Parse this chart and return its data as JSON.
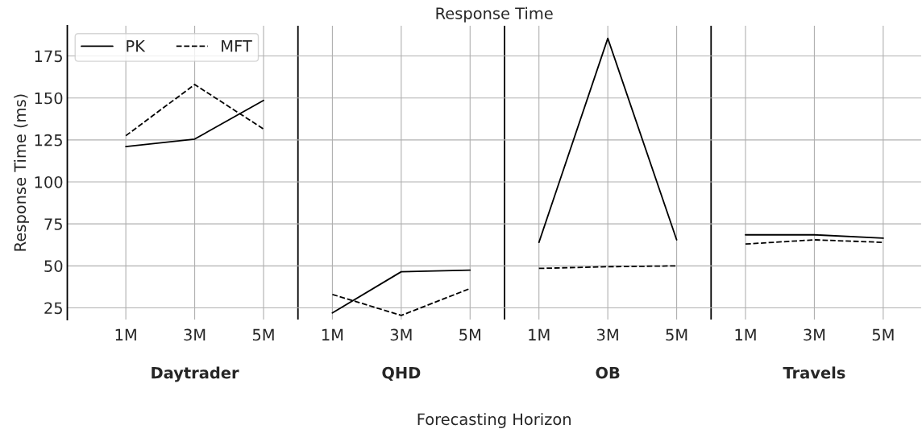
{
  "chart_data": {
    "type": "line",
    "title": "Response Time",
    "xlabel": "Forecasting Horizon",
    "ylabel": "Response Time (ms)",
    "annotations": [
      "Daytrader",
      "QHD",
      "OB",
      "Travels"
    ],
    "categories": [
      "1M",
      "3M",
      "5M",
      "1M",
      "3M",
      "5M",
      "1M",
      "3M",
      "5M",
      "1M",
      "3M",
      "5M"
    ],
    "series": [
      {
        "name": "PK",
        "color": "#000000",
        "line_style": "solid",
        "values": [
          121,
          125.5,
          148.5,
          null,
          null,
          null,
          null,
          null,
          null,
          null,
          null,
          null
        ]
      },
      {
        "name": "MFT",
        "color": "#000000",
        "line_style": "dashed",
        "values": [
          127.5,
          158,
          131.5,
          null,
          null,
          null,
          null,
          null,
          null,
          null,
          null,
          null
        ]
      },
      {
        "color": "#000000",
        "line_style": "solid",
        "values": [
          null,
          null,
          null,
          22,
          46.5,
          47.5,
          null,
          null,
          null,
          null,
          null,
          null
        ]
      },
      {
        "color": "#000000",
        "line_style": "dashed",
        "values": [
          null,
          null,
          null,
          33,
          20.5,
          36.5,
          null,
          null,
          null,
          null,
          null,
          null
        ]
      },
      {
        "color": "#000000",
        "line_style": "solid",
        "values": [
          null,
          null,
          null,
          null,
          null,
          null,
          64,
          185.5,
          65.5,
          null,
          null,
          null
        ]
      },
      {
        "color": "#000000",
        "line_style": "dashed",
        "values": [
          null,
          null,
          null,
          null,
          null,
          null,
          48.5,
          49.5,
          50,
          null,
          null,
          null
        ]
      },
      {
        "color": "#000000",
        "line_style": "solid",
        "values": [
          null,
          null,
          null,
          null,
          null,
          null,
          null,
          null,
          null,
          68.5,
          68.5,
          66.5
        ]
      },
      {
        "color": "#000000",
        "line_style": "dashed",
        "values": [
          null,
          null,
          null,
          null,
          null,
          null,
          null,
          null,
          null,
          63,
          65.5,
          64
        ]
      }
    ],
    "ylim": [
      18,
      193
    ],
    "yticks": [
      25,
      50,
      75,
      100,
      125,
      150,
      175
    ],
    "grid": true,
    "legend": "top left",
    "marker": "none"
  }
}
